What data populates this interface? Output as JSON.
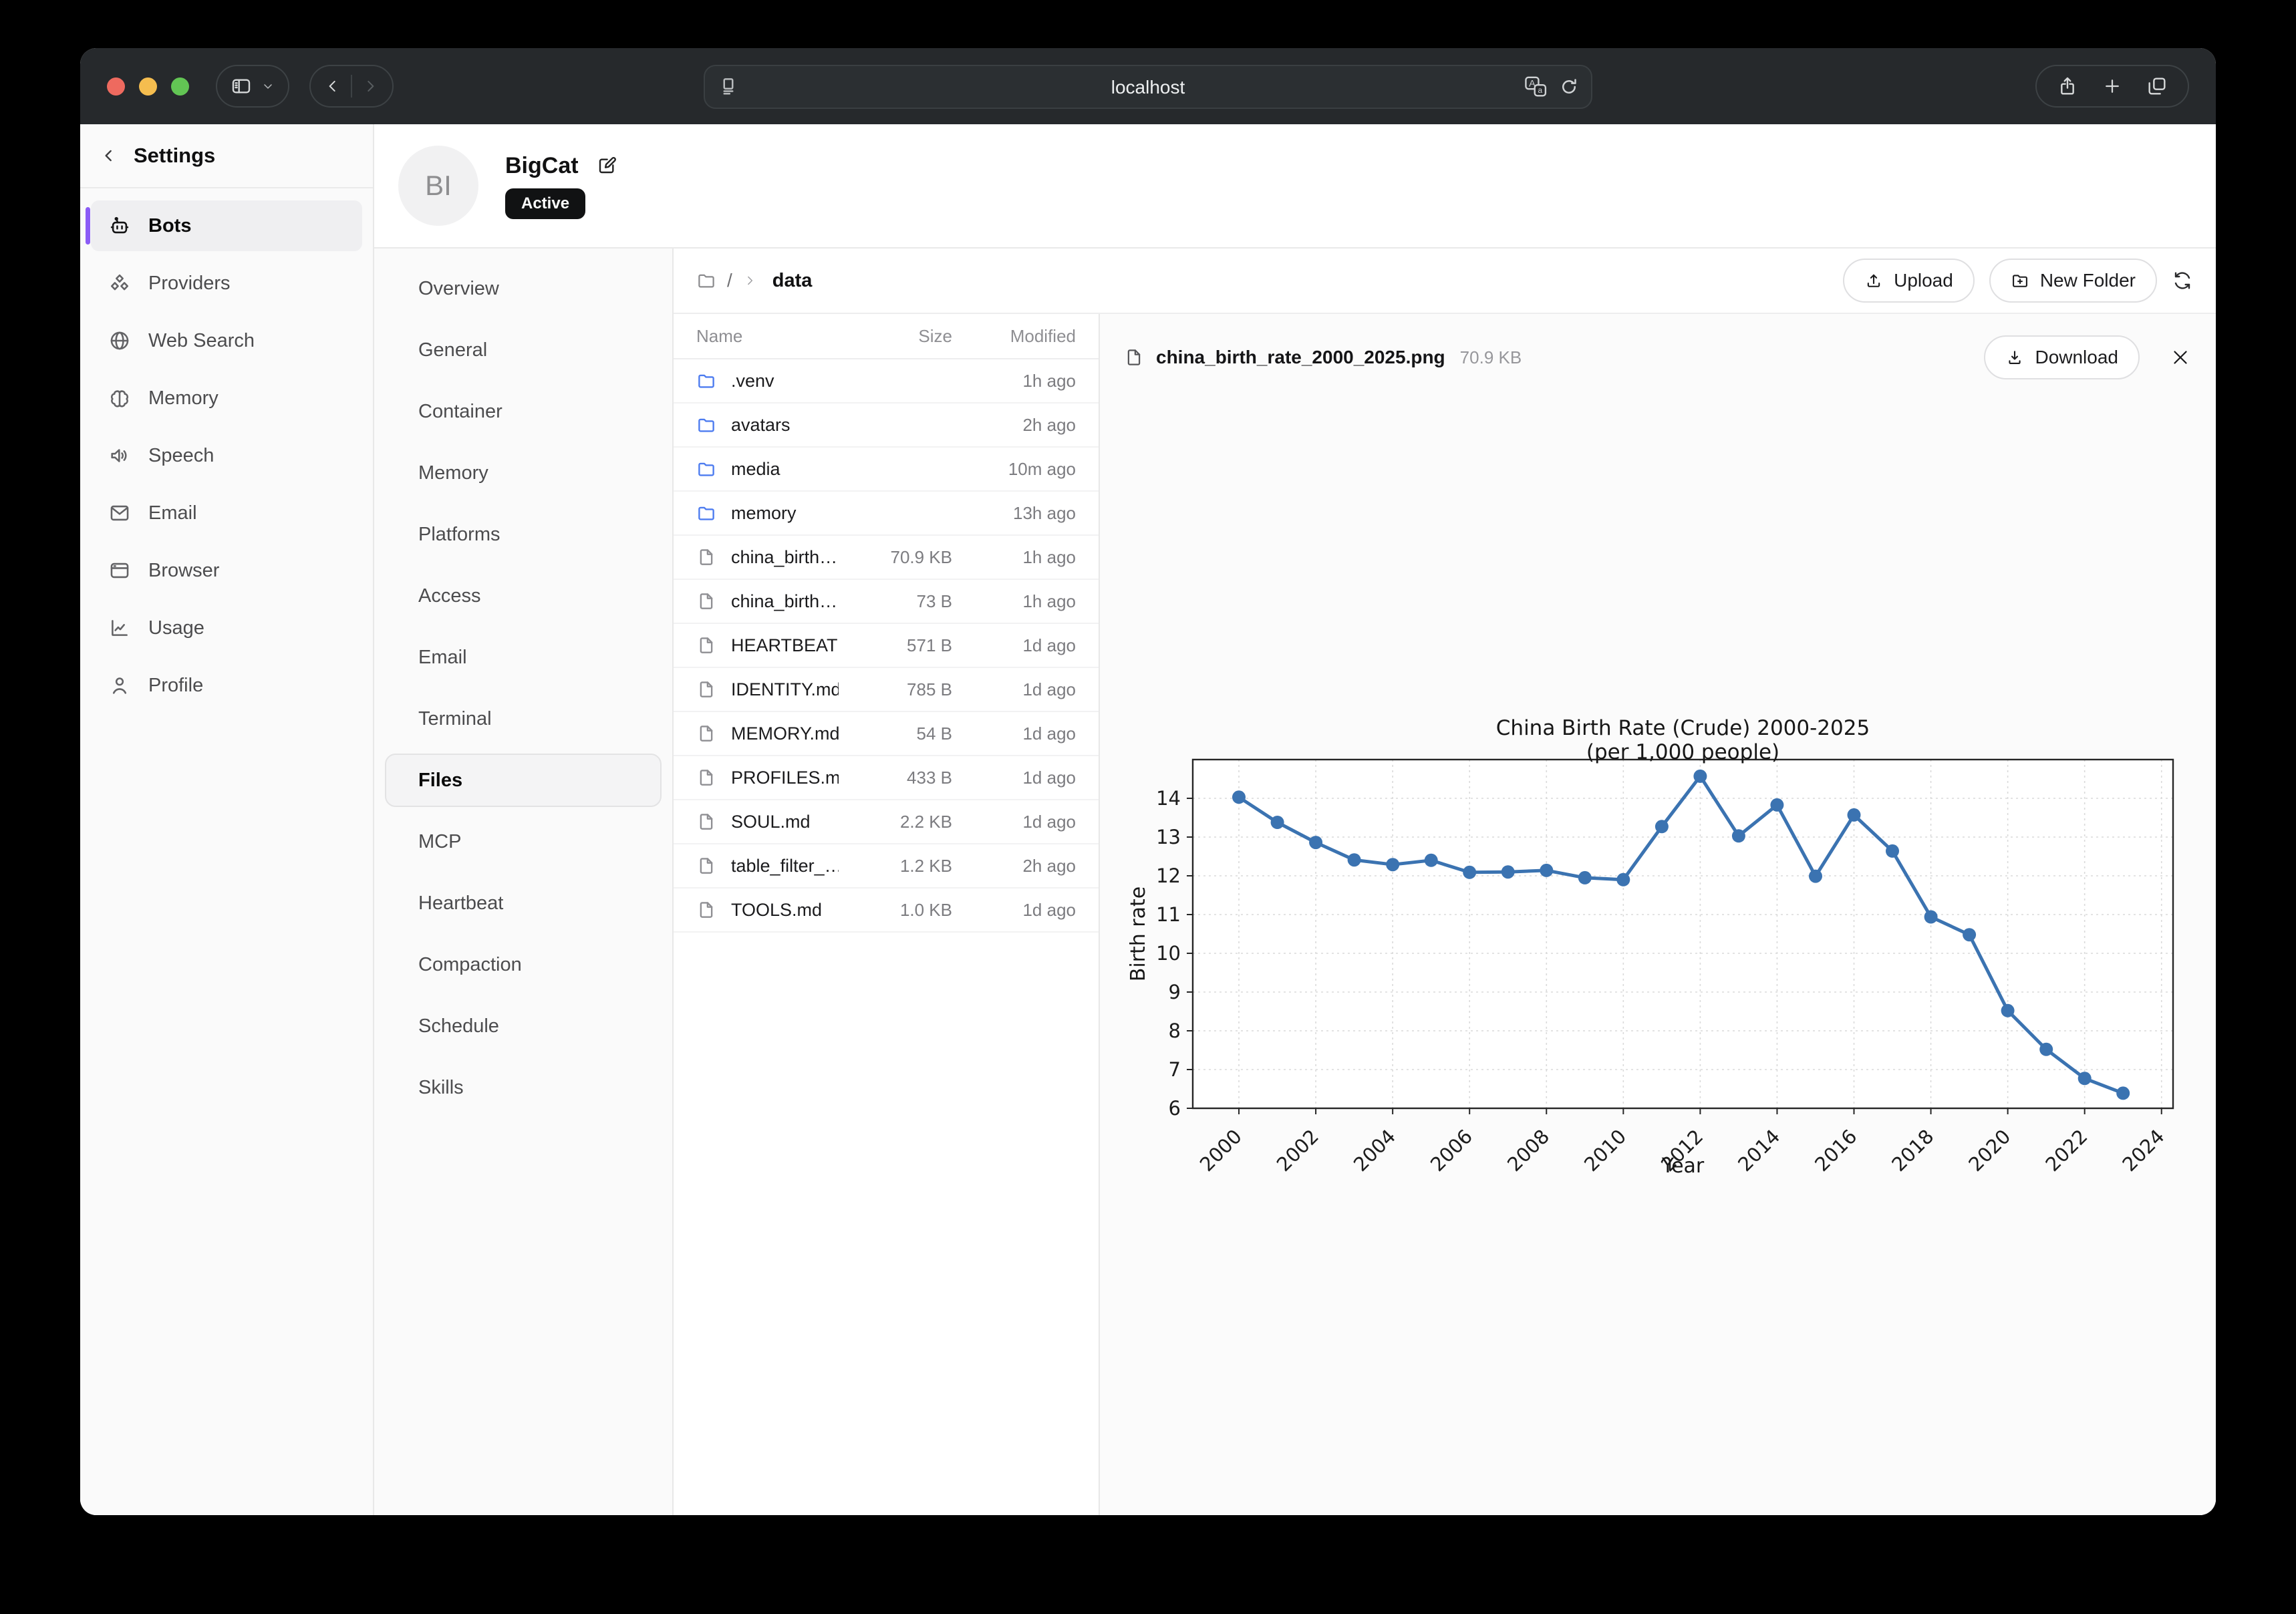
{
  "colors": {
    "tl_red": "#ee6a5f",
    "tl_yellow": "#f5bd4f",
    "tl_green": "#62c554",
    "accent": "#8b5cf6",
    "folder": "#4d7cf0",
    "chart_line": "#3b73b1",
    "toolbar": "#26292c",
    "badge": "#111213"
  },
  "browser": {
    "url": "localhost"
  },
  "sidebar": {
    "title": "Settings",
    "items": [
      {
        "label": "Bots",
        "icon": "bot",
        "active": true
      },
      {
        "label": "Providers",
        "icon": "boxes",
        "active": false
      },
      {
        "label": "Web Search",
        "icon": "globe",
        "active": false
      },
      {
        "label": "Memory",
        "icon": "brain",
        "active": false
      },
      {
        "label": "Speech",
        "icon": "speaker",
        "active": false
      },
      {
        "label": "Email",
        "icon": "mail",
        "active": false
      },
      {
        "label": "Browser",
        "icon": "window",
        "active": false
      },
      {
        "label": "Usage",
        "icon": "chart",
        "active": false
      },
      {
        "label": "Profile",
        "icon": "person",
        "active": false
      }
    ]
  },
  "bot": {
    "initials": "BI",
    "name": "BigCat",
    "status": "Active"
  },
  "bot_nav": {
    "items": [
      {
        "label": "Overview",
        "active": false
      },
      {
        "label": "General",
        "active": false
      },
      {
        "label": "Container",
        "active": false
      },
      {
        "label": "Memory",
        "active": false
      },
      {
        "label": "Platforms",
        "active": false
      },
      {
        "label": "Access",
        "active": false
      },
      {
        "label": "Email",
        "active": false
      },
      {
        "label": "Terminal",
        "active": false
      },
      {
        "label": "Files",
        "active": true
      },
      {
        "label": "MCP",
        "active": false
      },
      {
        "label": "Heartbeat",
        "active": false
      },
      {
        "label": "Compaction",
        "active": false
      },
      {
        "label": "Schedule",
        "active": false
      },
      {
        "label": "Skills",
        "active": false
      }
    ]
  },
  "breadcrumb": {
    "root": "/",
    "current": "data"
  },
  "actions": {
    "upload": "Upload",
    "new_folder": "New Folder",
    "download": "Download"
  },
  "file_table": {
    "columns": {
      "name": "Name",
      "size": "Size",
      "modified": "Modified"
    },
    "rows": [
      {
        "name": ".venv",
        "icon": "folder",
        "folder": true,
        "size": "",
        "modified": "1h ago"
      },
      {
        "name": "avatars",
        "icon": "folder",
        "folder": true,
        "size": "",
        "modified": "2h ago"
      },
      {
        "name": "media",
        "icon": "folder",
        "folder": true,
        "size": "",
        "modified": "10m ago"
      },
      {
        "name": "memory",
        "icon": "folder",
        "folder": true,
        "size": "",
        "modified": "13h ago"
      },
      {
        "name": "china_birth…",
        "icon": "file",
        "folder": false,
        "size": "70.9 KB",
        "modified": "1h ago"
      },
      {
        "name": "china_birth…",
        "icon": "file",
        "folder": false,
        "size": "73 B",
        "modified": "1h ago"
      },
      {
        "name": "HEARTBEAT…",
        "icon": "file",
        "folder": false,
        "size": "571 B",
        "modified": "1d ago"
      },
      {
        "name": "IDENTITY.md",
        "icon": "file",
        "folder": false,
        "size": "785 B",
        "modified": "1d ago"
      },
      {
        "name": "MEMORY.md",
        "icon": "file",
        "folder": false,
        "size": "54 B",
        "modified": "1d ago"
      },
      {
        "name": "PROFILES.md",
        "icon": "file",
        "folder": false,
        "size": "433 B",
        "modified": "1d ago"
      },
      {
        "name": "SOUL.md",
        "icon": "file",
        "folder": false,
        "size": "2.2 KB",
        "modified": "1d ago"
      },
      {
        "name": "table_filter_…",
        "icon": "file",
        "folder": false,
        "size": "1.2 KB",
        "modified": "2h ago"
      },
      {
        "name": "TOOLS.md",
        "icon": "file",
        "folder": false,
        "size": "1.0 KB",
        "modified": "1d ago"
      }
    ]
  },
  "preview": {
    "file_name": "china_birth_rate_2000_2025.png",
    "file_size": "70.9 KB"
  },
  "chart_data": {
    "type": "line",
    "title": "China Birth Rate (Crude) 2000-2025",
    "subtitle": "(per 1,000 people)",
    "xlabel": "Year",
    "ylabel": "Birth rate",
    "x": [
      2000,
      2001,
      2002,
      2003,
      2004,
      2005,
      2006,
      2007,
      2008,
      2009,
      2010,
      2011,
      2012,
      2013,
      2014,
      2015,
      2016,
      2017,
      2018,
      2019,
      2020,
      2021,
      2022,
      2023
    ],
    "values": [
      14.03,
      13.38,
      12.86,
      12.41,
      12.29,
      12.4,
      12.09,
      12.1,
      12.14,
      11.95,
      11.9,
      13.27,
      14.57,
      13.03,
      13.83,
      11.99,
      13.57,
      12.64,
      10.94,
      10.48,
      8.52,
      7.52,
      6.77,
      6.39
    ],
    "xticks": [
      2000,
      2002,
      2004,
      2006,
      2008,
      2010,
      2012,
      2014,
      2016,
      2018,
      2020,
      2022,
      2024
    ],
    "yticks": [
      6,
      7,
      8,
      9,
      10,
      11,
      12,
      13,
      14
    ],
    "xlim": [
      1998.8,
      2024.3
    ],
    "ylim": [
      6,
      15
    ],
    "grid": true,
    "legend": false,
    "line_color": "#3b73b1"
  }
}
